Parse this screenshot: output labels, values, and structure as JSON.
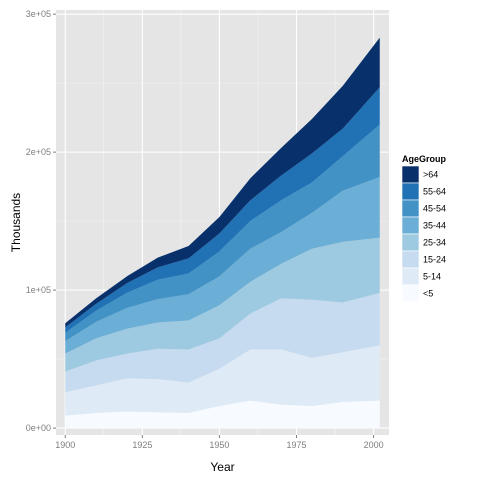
{
  "chart_data": {
    "type": "area",
    "stacked": true,
    "xlabel": "Year",
    "ylabel": "Thousands",
    "xlim": [
      1897,
      2005
    ],
    "ylim": [
      -5000,
      303000
    ],
    "x_ticks": [
      1900,
      1925,
      1950,
      1975,
      2000
    ],
    "x_tick_labels": [
      "1900",
      "1925",
      "1950",
      "1975",
      "2000"
    ],
    "y_ticks": [
      0,
      100000,
      200000,
      300000
    ],
    "y_tick_labels": [
      "0e+00",
      "1e+05",
      "2e+05",
      "3e+05"
    ],
    "grid": true,
    "legend": {
      "title": "AgeGroup",
      "position": "right"
    },
    "x": [
      1900,
      1910,
      1920,
      1930,
      1940,
      1950,
      1960,
      1970,
      1980,
      1990,
      2002
    ],
    "series": [
      {
        "name": "<5",
        "color": "#F7FBFF",
        "values": [
          9000,
          11000,
          12000,
          11500,
          11000,
          16000,
          20000,
          17000,
          16000,
          19000,
          20000
        ]
      },
      {
        "name": "5-14",
        "color": "#DEEBF7",
        "values": [
          17000,
          20000,
          24000,
          24000,
          22000,
          27000,
          37000,
          40000,
          35000,
          36000,
          40000
        ]
      },
      {
        "name": "15-24",
        "color": "#C6DBEF",
        "values": [
          15000,
          18000,
          18000,
          22000,
          24000,
          22000,
          26000,
          37000,
          42000,
          36000,
          38000
        ]
      },
      {
        "name": "25-34",
        "color": "#9ECAE1",
        "values": [
          13000,
          16000,
          18000,
          19000,
          21000,
          24000,
          23000,
          25000,
          37000,
          44000,
          40000
        ]
      },
      {
        "name": "35-44",
        "color": "#6BAED6",
        "values": [
          9000,
          12000,
          15000,
          17000,
          19000,
          21000,
          24000,
          23000,
          26000,
          37000,
          44000
        ]
      },
      {
        "name": "45-54",
        "color": "#4292C6",
        "values": [
          6000,
          8000,
          11000,
          14000,
          15000,
          18000,
          20000,
          23000,
          22000,
          25000,
          38000
        ]
      },
      {
        "name": "55-64",
        "color": "#2171B5",
        "values": [
          4000,
          5000,
          7000,
          9000,
          11000,
          13000,
          15000,
          18000,
          21000,
          20000,
          27000
        ]
      },
      {
        "name": ">64",
        "color": "#08306B",
        "values": [
          3000,
          4000,
          5000,
          7000,
          9000,
          12000,
          16000,
          20000,
          25000,
          31000,
          36000
        ]
      }
    ]
  }
}
